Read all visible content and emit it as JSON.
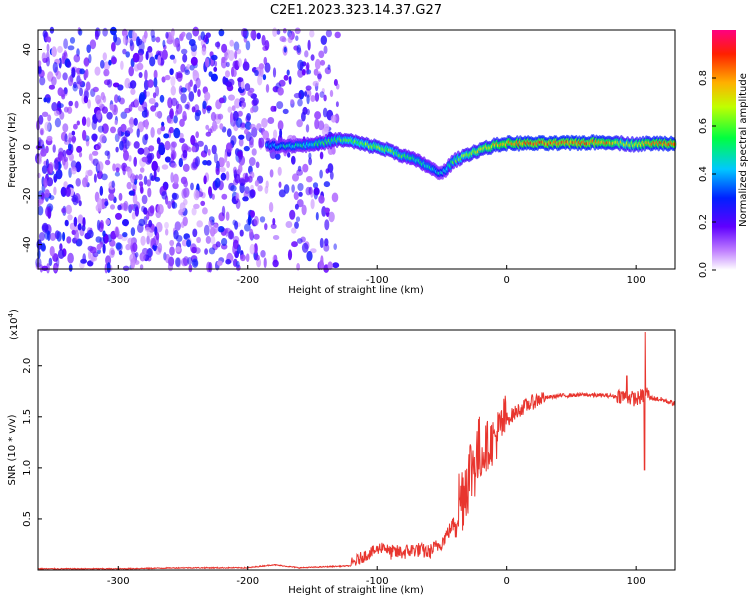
{
  "title": "C2E1.2023.323.14.37.G27",
  "chart_data": [
    {
      "type": "heatmap",
      "xlabel": "Height of straight line (km)",
      "ylabel": "Frequency (Hz)",
      "xlim": [
        -362,
        130
      ],
      "ylim": [
        -50,
        48
      ],
      "xticks": [
        -300,
        -200,
        -100,
        0,
        100
      ],
      "yticks": [
        -40,
        -20,
        0,
        20,
        40
      ],
      "colorbar": {
        "label": "Normalized spectral amplitude",
        "range": [
          0.0,
          1.0
        ],
        "ticks": [
          0.0,
          0.2,
          0.4,
          0.6,
          0.8
        ],
        "tick_labels": [
          "0.0",
          "0.2",
          "0.4",
          "0.6",
          "0.8"
        ],
        "colormap": [
          "#ffffff",
          "#7a00ff",
          "#0000ff",
          "#00c8ff",
          "#00ff40",
          "#ffff00",
          "#ff8000",
          "#ff0000",
          "#ff0080"
        ]
      },
      "noise_region": {
        "x_range": [
          -362,
          -130
        ],
        "amplitude": [
          0.05,
          0.3
        ]
      },
      "ridge": {
        "x": [
          -185,
          -170,
          -150,
          -130,
          -120,
          -110,
          -100,
          -90,
          -80,
          -70,
          -60,
          -55,
          -50,
          -45,
          -40,
          -30,
          -20,
          -10,
          0,
          20,
          40,
          60,
          80,
          90,
          100,
          110,
          130
        ],
        "frequency": [
          0.5,
          0.5,
          1.0,
          3.0,
          2.5,
          1.0,
          0.0,
          -1.5,
          -3.5,
          -5.5,
          -8.0,
          -10.0,
          -11.0,
          -8.0,
          -5.5,
          -3.0,
          -1.0,
          0.5,
          1.5,
          1.5,
          1.5,
          1.8,
          2.0,
          1.5,
          1.0,
          1.5,
          1.5
        ],
        "amplitude": [
          0.4,
          0.45,
          0.5,
          0.55,
          0.6,
          0.6,
          0.65,
          0.6,
          0.55,
          0.5,
          0.5,
          0.45,
          0.4,
          0.5,
          0.55,
          0.65,
          0.7,
          0.75,
          0.8,
          0.85,
          0.85,
          0.85,
          0.8,
          0.65,
          0.7,
          0.8,
          0.85
        ]
      }
    },
    {
      "type": "line",
      "xlabel": "Height of straight line (km)",
      "ylabel": "SNR (10 * v/v)",
      "y_multiplier": "(x10",
      "y_multiplier_exp": "4",
      "y_multiplier_close": ")",
      "xlim": [
        -362,
        130
      ],
      "ylim": [
        0,
        2.35
      ],
      "xticks": [
        -300,
        -200,
        -100,
        0,
        100
      ],
      "yticks": [
        0.5,
        1.0,
        1.5,
        2.0
      ],
      "ytick_labels": [
        "0.5",
        "1.0",
        "1.5",
        "2.0"
      ],
      "color": "#e8352e",
      "series": [
        {
          "x": [
            -362,
            -300,
            -250,
            -200,
            -180,
            -160,
            -120,
            -110,
            -100,
            -95,
            -90,
            -80,
            -70,
            -60,
            -50,
            -45,
            -40,
            -35,
            -30,
            -25,
            -20,
            -15,
            -10,
            -5,
            0,
            10,
            20,
            30,
            40,
            60,
            80,
            90,
            100,
            105,
            108,
            110,
            120,
            130
          ],
          "y": [
            0.01,
            0.01,
            0.02,
            0.02,
            0.05,
            0.02,
            0.04,
            0.12,
            0.18,
            0.22,
            0.15,
            0.15,
            0.18,
            0.15,
            0.25,
            0.35,
            0.45,
            0.6,
            0.8,
            0.95,
            1.05,
            1.15,
            1.2,
            1.3,
            1.45,
            1.55,
            1.62,
            1.68,
            1.7,
            1.71,
            1.7,
            1.68,
            1.65,
            1.68,
            1.72,
            1.68,
            1.66,
            1.62
          ]
        }
      ],
      "noise": [
        {
          "x_range": [
            -120,
            -90
          ],
          "amplitude": 0.12
        },
        {
          "x_range": [
            -90,
            -40
          ],
          "amplitude": 0.15
        },
        {
          "x_range": [
            -40,
            -20
          ],
          "amplitude": 0.55
        },
        {
          "x_range": [
            -20,
            0
          ],
          "amplitude": 0.35
        },
        {
          "x_range": [
            0,
            30
          ],
          "amplitude": 0.15
        },
        {
          "x_range": [
            30,
            85
          ],
          "amplitude": 0.04
        },
        {
          "x_range": [
            85,
            110
          ],
          "amplitude": 0.15
        },
        {
          "x_range": [
            110,
            130
          ],
          "amplitude": 0.05
        }
      ],
      "spikes": [
        {
          "x": 107,
          "y": 2.33
        },
        {
          "x": 106.5,
          "y": 0.98
        },
        {
          "x": 93,
          "y": 1.9
        }
      ]
    }
  ]
}
